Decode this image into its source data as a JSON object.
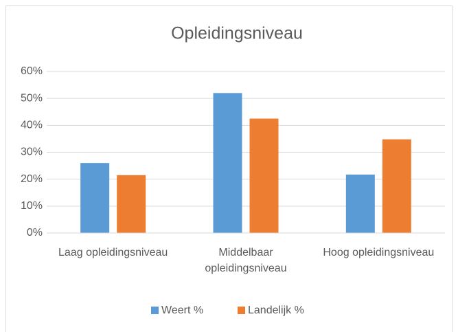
{
  "chart_data": {
    "type": "bar",
    "title": "Opleidingsniveau",
    "categories": [
      "Laag opleidingsniveau",
      "Middelbaar opleidingsniveau",
      "Hoog opleidingsniveau"
    ],
    "series": [
      {
        "name": "Weert %",
        "color": "#5b9bd5",
        "values": [
          26,
          52,
          21.7
        ]
      },
      {
        "name": "Landelijk %",
        "color": "#ed7d31",
        "values": [
          21.5,
          42.5,
          34.8
        ]
      }
    ],
    "ylim": [
      0,
      60
    ],
    "yticks": [
      {
        "value": 0,
        "label": "0%"
      },
      {
        "value": 10,
        "label": "10%"
      },
      {
        "value": 20,
        "label": "20%"
      },
      {
        "value": 30,
        "label": "30%"
      },
      {
        "value": 40,
        "label": "40%"
      },
      {
        "value": 50,
        "label": "50%"
      },
      {
        "value": 60,
        "label": "60%"
      }
    ],
    "grid": true,
    "legend": "bottom"
  }
}
